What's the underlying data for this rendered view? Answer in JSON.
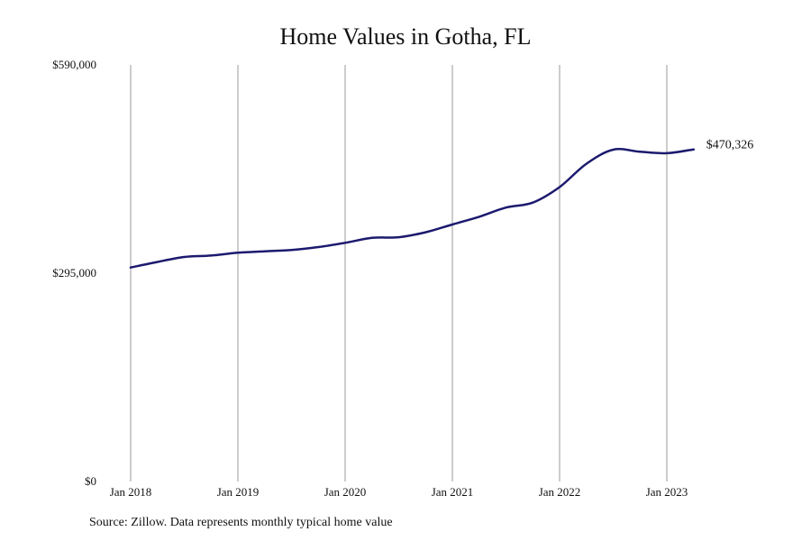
{
  "chart_data": {
    "type": "line",
    "title": "Home Values in Gotha, FL",
    "xlabel": "",
    "ylabel": "",
    "ylim": [
      0,
      590000
    ],
    "y_ticks": [
      "$0",
      "$295,000",
      "$590,000"
    ],
    "y_tick_values": [
      0,
      295000,
      590000
    ],
    "x_ticks": [
      "Jan 2018",
      "Jan 2019",
      "Jan 2020",
      "Jan 2021",
      "Jan 2022",
      "Jan 2023"
    ],
    "x_tick_values": [
      "2018-01",
      "2019-01",
      "2020-01",
      "2021-01",
      "2022-01",
      "2023-01"
    ],
    "grid": "vertical lines at x ticks",
    "line_color": "#1c1a6e",
    "series": [
      {
        "name": "",
        "x": [
          "2018-01",
          "2018-04",
          "2018-07",
          "2018-10",
          "2019-01",
          "2019-04",
          "2019-07",
          "2019-10",
          "2020-01",
          "2020-04",
          "2020-07",
          "2020-10",
          "2021-01",
          "2021-04",
          "2021-07",
          "2021-10",
          "2022-01",
          "2022-04",
          "2022-07",
          "2022-10",
          "2023-01",
          "2023-04"
        ],
        "values": [
          303000,
          311000,
          318000,
          320000,
          324000,
          326000,
          328000,
          332000,
          338000,
          345000,
          346000,
          353000,
          364000,
          375000,
          388000,
          395000,
          417000,
          450000,
          470000,
          467000,
          465000,
          470326
        ]
      }
    ],
    "end_label": "$470,326"
  },
  "source_note": "Source: Zillow. Data represents monthly typical home value"
}
